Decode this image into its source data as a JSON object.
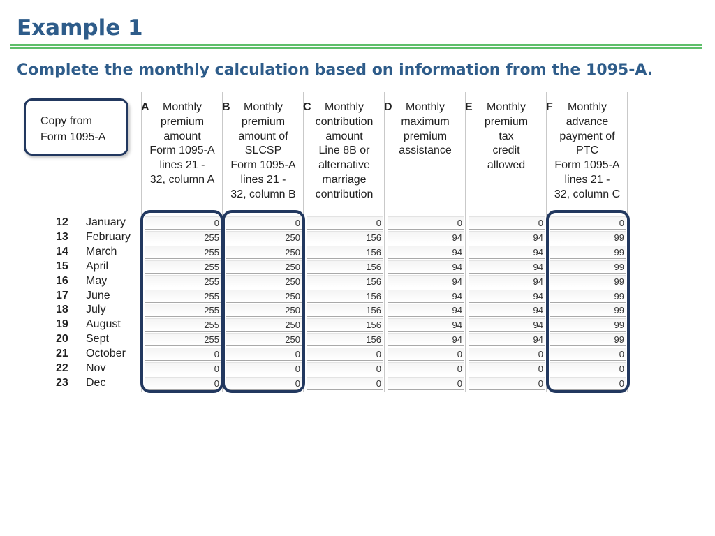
{
  "slide": {
    "title": "Example 1",
    "subtitle": "Complete the monthly calculation based on information from the 1095-A.",
    "callout": {
      "line1": "Copy from",
      "line2": "Form 1095-A"
    }
  },
  "colors": {
    "title": "#2e5c8a",
    "rule": "#5fbf6a",
    "highlight": "#22385f"
  },
  "columns": [
    {
      "letter": "A",
      "lines": [
        "Monthly",
        "premium",
        "amount",
        "Form 1095-A",
        "lines 21 -",
        "32, column A"
      ]
    },
    {
      "letter": "B",
      "lines": [
        "Monthly",
        "premium",
        "amount of",
        "SLCSP",
        "Form 1095-A",
        "lines 21 -",
        "32, column B"
      ]
    },
    {
      "letter": "C",
      "lines": [
        "Monthly",
        "contribution",
        "amount",
        "Line 8B or",
        "alternative",
        "marriage",
        "contribution"
      ]
    },
    {
      "letter": "D",
      "lines": [
        "Monthly",
        "maximum",
        "premium",
        "assistance"
      ]
    },
    {
      "letter": "E",
      "lines": [
        "Monthly",
        "premium",
        "tax",
        "credit",
        "allowed"
      ]
    },
    {
      "letter": "F",
      "lines": [
        "Monthly",
        "advance",
        "payment of",
        "PTC",
        "Form 1095-A",
        "lines 21 -",
        "32, column C"
      ]
    }
  ],
  "rows": [
    {
      "num": "12",
      "month": "January",
      "values": [
        "0",
        "0",
        "0",
        "0",
        "0",
        "0"
      ]
    },
    {
      "num": "13",
      "month": "February",
      "values": [
        "255",
        "250",
        "156",
        "94",
        "94",
        "99"
      ]
    },
    {
      "num": "14",
      "month": "March",
      "values": [
        "255",
        "250",
        "156",
        "94",
        "94",
        "99"
      ]
    },
    {
      "num": "15",
      "month": "April",
      "values": [
        "255",
        "250",
        "156",
        "94",
        "94",
        "99"
      ]
    },
    {
      "num": "16",
      "month": "May",
      "values": [
        "255",
        "250",
        "156",
        "94",
        "94",
        "99"
      ]
    },
    {
      "num": "17",
      "month": "June",
      "values": [
        "255",
        "250",
        "156",
        "94",
        "94",
        "99"
      ]
    },
    {
      "num": "18",
      "month": "July",
      "values": [
        "255",
        "250",
        "156",
        "94",
        "94",
        "99"
      ]
    },
    {
      "num": "19",
      "month": "August",
      "values": [
        "255",
        "250",
        "156",
        "94",
        "94",
        "99"
      ]
    },
    {
      "num": "20",
      "month": "Sept",
      "values": [
        "255",
        "250",
        "156",
        "94",
        "94",
        "99"
      ]
    },
    {
      "num": "21",
      "month": "October",
      "values": [
        "0",
        "0",
        "0",
        "0",
        "0",
        "0"
      ]
    },
    {
      "num": "22",
      "month": "Nov",
      "values": [
        "0",
        "0",
        "0",
        "0",
        "0",
        "0"
      ]
    },
    {
      "num": "23",
      "month": "Dec",
      "values": [
        "0",
        "0",
        "0",
        "0",
        "0",
        "0"
      ]
    }
  ]
}
